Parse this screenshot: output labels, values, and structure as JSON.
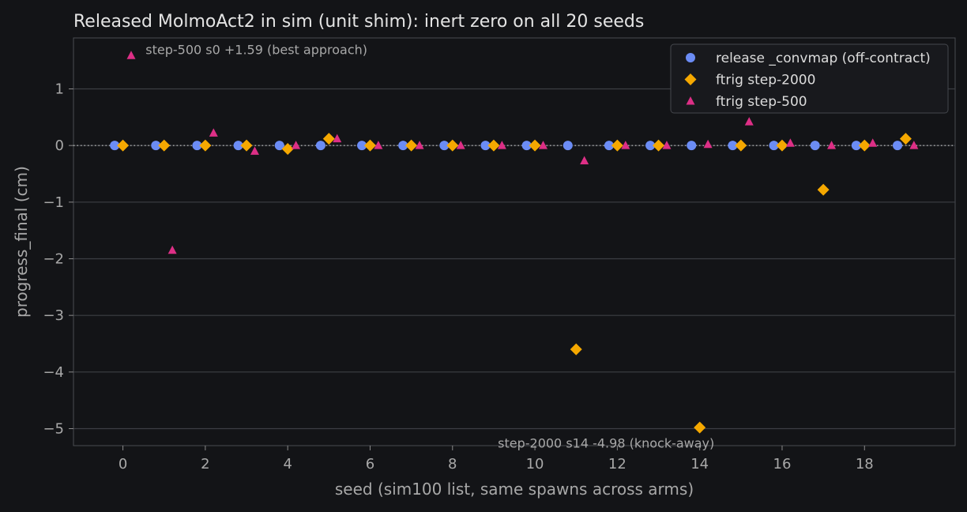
{
  "chart_data": {
    "type": "scatter",
    "title": "Released MolmoAct2 in sim (unit shim): inert zero on all 20 seeds",
    "xlabel": "seed (sim100 list, same spawns across arms)",
    "ylabel": "progress_final (cm)",
    "xlim": [
      -1.2,
      20.2
    ],
    "ylim": [
      -5.3,
      1.9
    ],
    "xticks": [
      "0",
      "2",
      "4",
      "6",
      "8",
      "10",
      "12",
      "14",
      "16",
      "18"
    ],
    "yticks": [
      "1",
      "0",
      "−1",
      "−2",
      "−3",
      "−4",
      "−5"
    ],
    "grid": "horizontal",
    "zero_line": true,
    "legend_position": "top-right",
    "series": [
      {
        "name": "release _convmap (off-contract)",
        "marker": "circle",
        "color": "#6b8cf5",
        "x": [
          -0.2,
          0.8,
          1.8,
          2.8,
          3.8,
          4.8,
          5.8,
          6.8,
          7.8,
          8.8,
          9.8,
          10.8,
          11.8,
          12.8,
          13.8,
          14.8,
          15.8,
          16.8,
          17.8,
          18.8
        ],
        "y": [
          0,
          0,
          0,
          0,
          0,
          0,
          0,
          0,
          0,
          0,
          0,
          0,
          0,
          0,
          0,
          0,
          0,
          0,
          0,
          0
        ]
      },
      {
        "name": "ftrig step-2000",
        "marker": "diamond",
        "color": "#f5a800",
        "x": [
          0,
          1,
          2,
          3,
          4,
          5,
          6,
          7,
          8,
          9,
          10,
          11,
          12,
          13,
          14,
          15,
          16,
          17,
          18,
          19
        ],
        "y": [
          0,
          0,
          0,
          0,
          -0.06,
          0.12,
          0,
          0,
          0,
          0,
          0,
          -3.6,
          0,
          0,
          -4.98,
          0,
          0,
          -0.78,
          0,
          0.12
        ]
      },
      {
        "name": "ftrig step-500",
        "marker": "triangle",
        "color": "#dd2f86",
        "x": [
          0.2,
          1.2,
          2.2,
          3.2,
          4.2,
          5.2,
          6.2,
          7.2,
          8.2,
          9.2,
          10.2,
          11.2,
          12.2,
          13.2,
          14.2,
          15.2,
          16.2,
          17.2,
          18.2,
          19.2
        ],
        "y": [
          1.59,
          -1.85,
          0.22,
          -0.1,
          0,
          0.12,
          0,
          0,
          0,
          0,
          0,
          -0.27,
          0,
          0,
          0.02,
          0.42,
          0.04,
          0,
          0.04,
          0
        ]
      }
    ],
    "annotations": [
      {
        "text": "step-500 s0 +1.59 (best approach)",
        "x": 0.55,
        "y": 1.7
      },
      {
        "text": "step-2000 s14 -4.98 (knock-away)",
        "x": 9.1,
        "y": -5.25
      }
    ]
  }
}
